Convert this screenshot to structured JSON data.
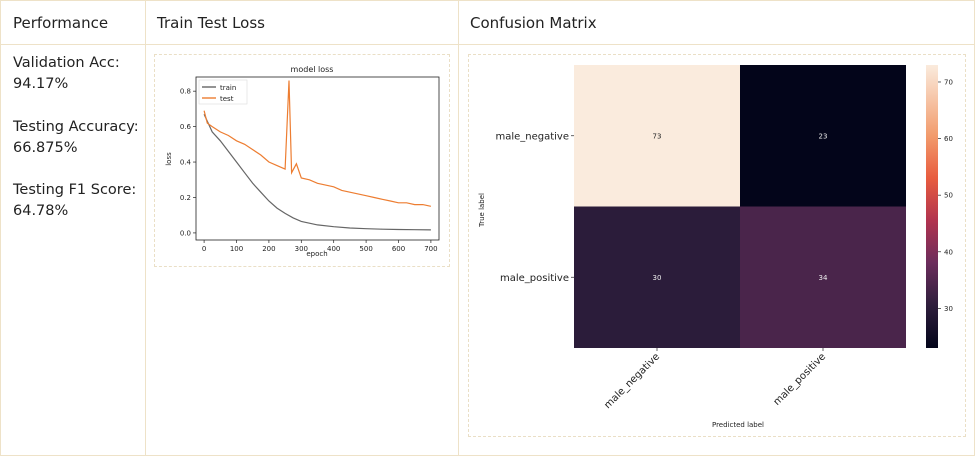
{
  "headers": {
    "performance": "Performance",
    "loss": "Train Test Loss",
    "confusion": "Confusion Matrix"
  },
  "metrics": [
    {
      "label": "Validation Acc:",
      "value": "94.17%"
    },
    {
      "label": "Testing Accuracy:",
      "value": "66.875%"
    },
    {
      "label": "Testing F1 Score:",
      "value": "64.78%"
    }
  ],
  "colors": {
    "train": "#666666",
    "test": "#ed7d31",
    "border": "#eee2c8"
  },
  "chart_data": [
    {
      "type": "line",
      "title": "model loss",
      "xlabel": "epoch",
      "ylabel": "loss",
      "xlim": [
        -25,
        725
      ],
      "ylim": [
        -0.04,
        0.88
      ],
      "xticks": [
        0,
        100,
        200,
        300,
        400,
        500,
        600,
        700
      ],
      "yticks": [
        0.0,
        0.2,
        0.4,
        0.6,
        0.8
      ],
      "ytick_labels": [
        "0.0",
        "0.2",
        "0.4",
        "0.6",
        "0.8"
      ],
      "legend_position": "top-left",
      "series": [
        {
          "name": "train",
          "x": [
            0,
            25,
            50,
            75,
            100,
            125,
            150,
            175,
            200,
            225,
            250,
            275,
            300,
            350,
            400,
            450,
            500,
            550,
            600,
            650,
            700
          ],
          "values": [
            0.67,
            0.57,
            0.52,
            0.46,
            0.4,
            0.34,
            0.28,
            0.23,
            0.18,
            0.14,
            0.11,
            0.085,
            0.065,
            0.045,
            0.035,
            0.028,
            0.024,
            0.021,
            0.019,
            0.018,
            0.017
          ]
        },
        {
          "name": "test",
          "x": [
            0,
            10,
            25,
            50,
            75,
            100,
            125,
            150,
            175,
            200,
            225,
            250,
            262,
            270,
            285,
            300,
            325,
            350,
            375,
            400,
            425,
            450,
            475,
            500,
            525,
            550,
            575,
            600,
            625,
            650,
            675,
            700
          ],
          "values": [
            0.69,
            0.62,
            0.6,
            0.57,
            0.55,
            0.52,
            0.5,
            0.47,
            0.44,
            0.4,
            0.38,
            0.36,
            0.86,
            0.34,
            0.39,
            0.31,
            0.3,
            0.28,
            0.27,
            0.26,
            0.24,
            0.23,
            0.22,
            0.21,
            0.2,
            0.19,
            0.18,
            0.17,
            0.17,
            0.16,
            0.16,
            0.15
          ]
        }
      ]
    },
    {
      "type": "heatmap",
      "xlabel": "Predicted label",
      "ylabel": "True label",
      "x_categories": [
        "male_negative",
        "male_positive"
      ],
      "y_categories": [
        "male_negative",
        "male_positive"
      ],
      "values": [
        [
          73,
          23
        ],
        [
          30,
          34
        ]
      ],
      "colorbar_ticks": [
        30,
        40,
        50,
        60,
        70
      ],
      "colorbar_range": [
        23,
        73
      ]
    }
  ]
}
